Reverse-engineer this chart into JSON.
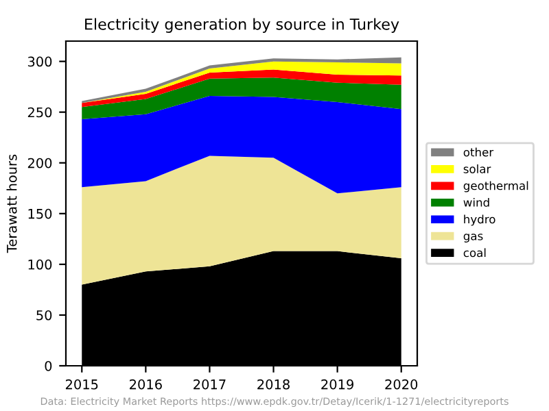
{
  "chart_data": {
    "type": "area",
    "stacked": true,
    "title": "Electricity generation by source in Turkey",
    "ylabel": "Terawatt hours",
    "x": [
      2015,
      2016,
      2017,
      2018,
      2019,
      2020
    ],
    "series": [
      {
        "name": "coal",
        "color": "#000000",
        "values": [
          80,
          93,
          98,
          113,
          113,
          106
        ]
      },
      {
        "name": "gas",
        "color": "#eee496",
        "values": [
          96,
          89,
          109,
          92,
          57,
          70
        ]
      },
      {
        "name": "hydro",
        "color": "#0000ff",
        "values": [
          67,
          66,
          59,
          60,
          90,
          77
        ]
      },
      {
        "name": "wind",
        "color": "#008000",
        "values": [
          12,
          15,
          17,
          19,
          19,
          24
        ]
      },
      {
        "name": "geothermal",
        "color": "#ff0000",
        "values": [
          4,
          5,
          6,
          8,
          8,
          9
        ]
      },
      {
        "name": "solar",
        "color": "#ffff00",
        "values": [
          0,
          2,
          4,
          8,
          12,
          12
        ]
      },
      {
        "name": "other",
        "color": "#808080",
        "values": [
          2,
          3,
          3,
          3,
          3,
          6
        ]
      }
    ],
    "xlim": [
      2014.75,
      2020.25
    ],
    "xticks": [
      2015,
      2016,
      2017,
      2018,
      2019,
      2020
    ],
    "ylim": [
      0,
      320
    ],
    "yticks": [
      0,
      50,
      100,
      150,
      200,
      250,
      300
    ],
    "legend": "right",
    "grid": false,
    "annotations": [
      "Data: Electricity Market Reports https://www.epdk.gov.tr/Detay/Icerik/1-1271/electricityreports"
    ]
  }
}
